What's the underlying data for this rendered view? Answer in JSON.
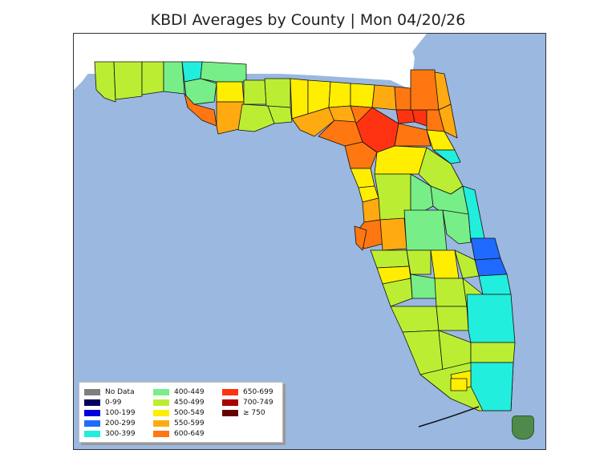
{
  "title": "KBDI Averages by County | Mon 04/20/26",
  "legend": [
    {
      "label": "No Data",
      "color": "#7f7f7f"
    },
    {
      "label": "0-99",
      "color": "#00005f"
    },
    {
      "label": "100-199",
      "color": "#0000dd"
    },
    {
      "label": "200-299",
      "color": "#1f6aff"
    },
    {
      "label": "300-399",
      "color": "#22eedd"
    },
    {
      "label": "400-449",
      "color": "#77ee88"
    },
    {
      "label": "450-499",
      "color": "#bbee33"
    },
    {
      "label": "500-549",
      "color": "#ffee00"
    },
    {
      "label": "550-599",
      "color": "#ffaa11"
    },
    {
      "label": "600-649",
      "color": "#ff7711"
    },
    {
      "label": "650-699",
      "color": "#ff3311"
    },
    {
      "label": "700-749",
      "color": "#aa0000"
    },
    {
      "label": "≥ 750",
      "color": "#660000"
    }
  ],
  "colors": {
    "water": "#9ab8e0",
    "neighbor_land": "#ffffff"
  },
  "badge_icon": "forest-service-shield-icon"
}
